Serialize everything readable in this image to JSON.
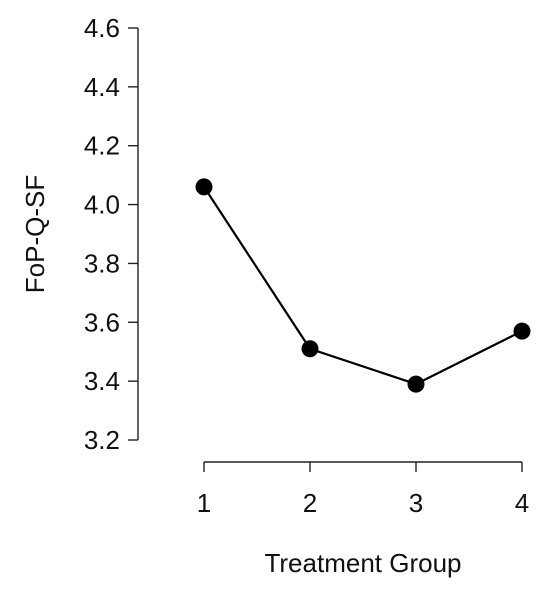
{
  "chart_data": {
    "type": "line",
    "xlabel": "Treatment Group",
    "ylabel": "FoP-Q-SF",
    "x": [
      1,
      2,
      3,
      4
    ],
    "x_tick_labels": [
      "1",
      "2",
      "3",
      "4"
    ],
    "values": [
      4.06,
      3.51,
      3.39,
      3.57
    ],
    "ylim": [
      3.2,
      4.6
    ],
    "y_ticks": [
      3.2,
      3.4,
      3.6,
      3.8,
      4.0,
      4.2,
      4.4,
      4.6
    ],
    "y_tick_labels": [
      "3.2",
      "3.4",
      "3.6",
      "3.8",
      "4.0",
      "4.2",
      "4.4",
      "4.6"
    ],
    "grid": false,
    "marker": "filled-circle",
    "line_color": "#000000"
  }
}
